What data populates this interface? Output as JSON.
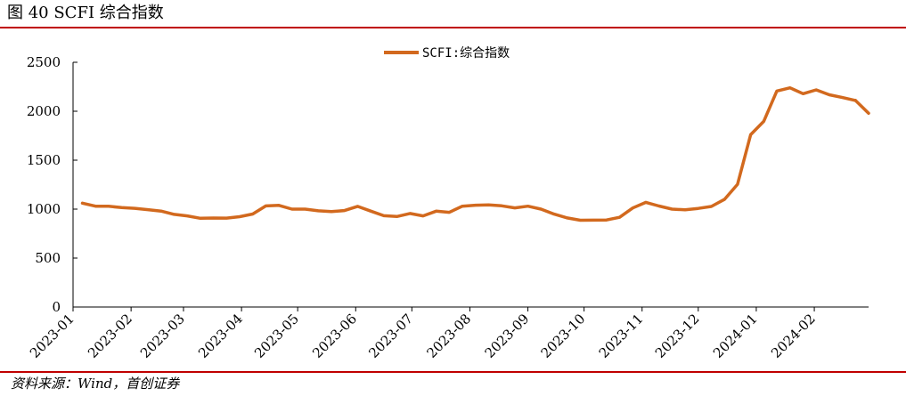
{
  "figure": {
    "title": "图  40 SCFI 综合指数",
    "source": "资料来源：Wind，首创证券",
    "accent_color": "#c00000"
  },
  "chart_data": {
    "type": "line",
    "title": "",
    "xlabel": "",
    "ylabel": "",
    "ylim": [
      0,
      2500
    ],
    "yticks": [
      0,
      500,
      1000,
      1500,
      2000,
      2500
    ],
    "xticks": [
      "2023-01",
      "2023-02",
      "2023-03",
      "2023-04",
      "2023-05",
      "2023-06",
      "2023-07",
      "2023-08",
      "2023-09",
      "2023-10",
      "2023-11",
      "2023-12",
      "2024-01",
      "2024-02"
    ],
    "xlim": [
      "2023-01-01",
      "2024-02-29"
    ],
    "grid": false,
    "legend_position": "top-center",
    "series": [
      {
        "name": "SCFI:综合指数",
        "color": "#d2691e",
        "x": [
          "2023-01-06",
          "2023-01-13",
          "2023-01-20",
          "2023-01-27",
          "2023-02-03",
          "2023-02-10",
          "2023-02-17",
          "2023-02-24",
          "2023-03-03",
          "2023-03-10",
          "2023-03-17",
          "2023-03-24",
          "2023-03-31",
          "2023-04-07",
          "2023-04-14",
          "2023-04-21",
          "2023-04-28",
          "2023-05-05",
          "2023-05-12",
          "2023-05-19",
          "2023-05-26",
          "2023-06-02",
          "2023-06-09",
          "2023-06-16",
          "2023-06-23",
          "2023-06-30",
          "2023-07-07",
          "2023-07-14",
          "2023-07-21",
          "2023-07-28",
          "2023-08-04",
          "2023-08-11",
          "2023-08-18",
          "2023-08-25",
          "2023-09-01",
          "2023-09-08",
          "2023-09-15",
          "2023-09-22",
          "2023-09-29",
          "2023-10-06",
          "2023-10-13",
          "2023-10-20",
          "2023-10-27",
          "2023-11-03",
          "2023-11-10",
          "2023-11-17",
          "2023-11-24",
          "2023-12-01",
          "2023-12-08",
          "2023-12-15",
          "2023-12-22",
          "2023-12-29",
          "2024-01-05",
          "2024-01-12",
          "2024-01-19",
          "2024-01-26",
          "2024-02-02",
          "2024-02-09",
          "2024-02-16",
          "2024-02-23"
        ],
        "values": [
          1061,
          1030,
          1029,
          1015,
          1008,
          995,
          980,
          946,
          931,
          906,
          909,
          908,
          923,
          950,
          1033,
          1038,
          1000,
          1000,
          983,
          975,
          985,
          1028,
          980,
          933,
          925,
          955,
          931,
          979,
          967,
          1030,
          1040,
          1043,
          1034,
          1013,
          1030,
          1000,
          949,
          910,
          886,
          887,
          889,
          916,
          1012,
          1069,
          1032,
          1000,
          993,
          1007,
          1027,
          1099,
          1254,
          1760,
          1896,
          2206,
          2239,
          2179,
          2218,
          2168,
          2140,
          2110
        ]
      },
      {
        "name": "",
        "color": "#d2691e",
        "x": [
          "2024-02-23",
          "2024-03-01"
        ],
        "values": [
          2110,
          1979
        ]
      }
    ]
  }
}
